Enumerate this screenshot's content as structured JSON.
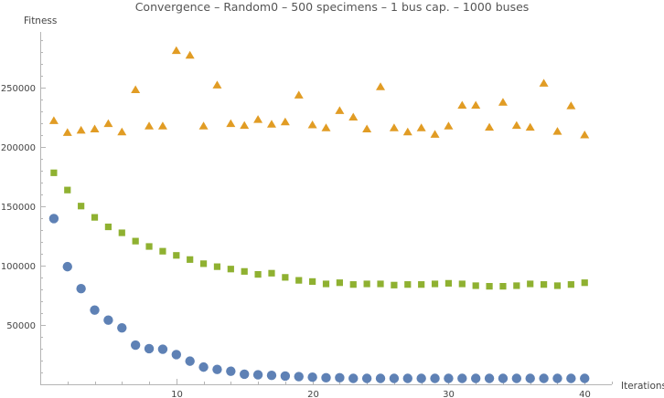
{
  "chart_data": {
    "type": "scatter",
    "title": "Convergence – Random0 – 500 specimens – 1 bus cap. – 1000 buses",
    "xlabel": "Iterations",
    "ylabel": "Fitness",
    "xlim": [
      0,
      42
    ],
    "ylim": [
      0,
      295000
    ],
    "x_ticks": [
      10,
      20,
      30,
      40
    ],
    "y_ticks": [
      50000,
      100000,
      150000,
      200000,
      250000
    ],
    "x_tick_labels": [
      "10",
      "20",
      "30",
      "40"
    ],
    "y_tick_labels": [
      "50000",
      "100000",
      "150000",
      "200000",
      "250000"
    ],
    "grid": false,
    "x": [
      1,
      2,
      3,
      4,
      5,
      6,
      7,
      8,
      9,
      10,
      11,
      12,
      13,
      14,
      15,
      16,
      17,
      18,
      19,
      20,
      21,
      22,
      23,
      24,
      25,
      26,
      27,
      28,
      29,
      30,
      31,
      32,
      33,
      34,
      35,
      36,
      37,
      38,
      39,
      40
    ],
    "series": [
      {
        "marker": "circle",
        "color": "#5e81b5",
        "values": [
          139500,
          99000,
          80500,
          62500,
          54000,
          47500,
          33000,
          30000,
          29500,
          25000,
          19500,
          14500,
          12500,
          11000,
          8500,
          8000,
          7500,
          7000,
          6500,
          6000,
          5500,
          5500,
          5000,
          5000,
          5000,
          5000,
          5000,
          5000,
          5000,
          5000,
          5000,
          5000,
          5000,
          5000,
          5000,
          5000,
          5000,
          5000,
          5000,
          5000
        ]
      },
      {
        "marker": "square",
        "color": "#8fb131",
        "values": [
          178000,
          163500,
          150000,
          140500,
          132500,
          127500,
          120500,
          116000,
          112000,
          108500,
          105000,
          101500,
          99000,
          97000,
          95000,
          92500,
          93500,
          90000,
          87500,
          86500,
          84500,
          85500,
          84000,
          84500,
          84500,
          83500,
          84000,
          84000,
          84500,
          85000,
          84500,
          83000,
          82500,
          82500,
          83000,
          84500,
          84000,
          83000,
          84000,
          85500
        ]
      },
      {
        "marker": "triangle",
        "color": "#e19c24",
        "values": [
          221500,
          211500,
          213500,
          214500,
          219000,
          212000,
          247500,
          217000,
          217000,
          280500,
          276500,
          217000,
          251500,
          219000,
          217500,
          222500,
          218500,
          220500,
          243000,
          218000,
          215500,
          230000,
          224500,
          214500,
          250000,
          215500,
          212000,
          215500,
          210000,
          217000,
          234500,
          234500,
          216000,
          237000,
          217500,
          216000,
          253000,
          212500,
          234000,
          209500
        ]
      }
    ]
  }
}
